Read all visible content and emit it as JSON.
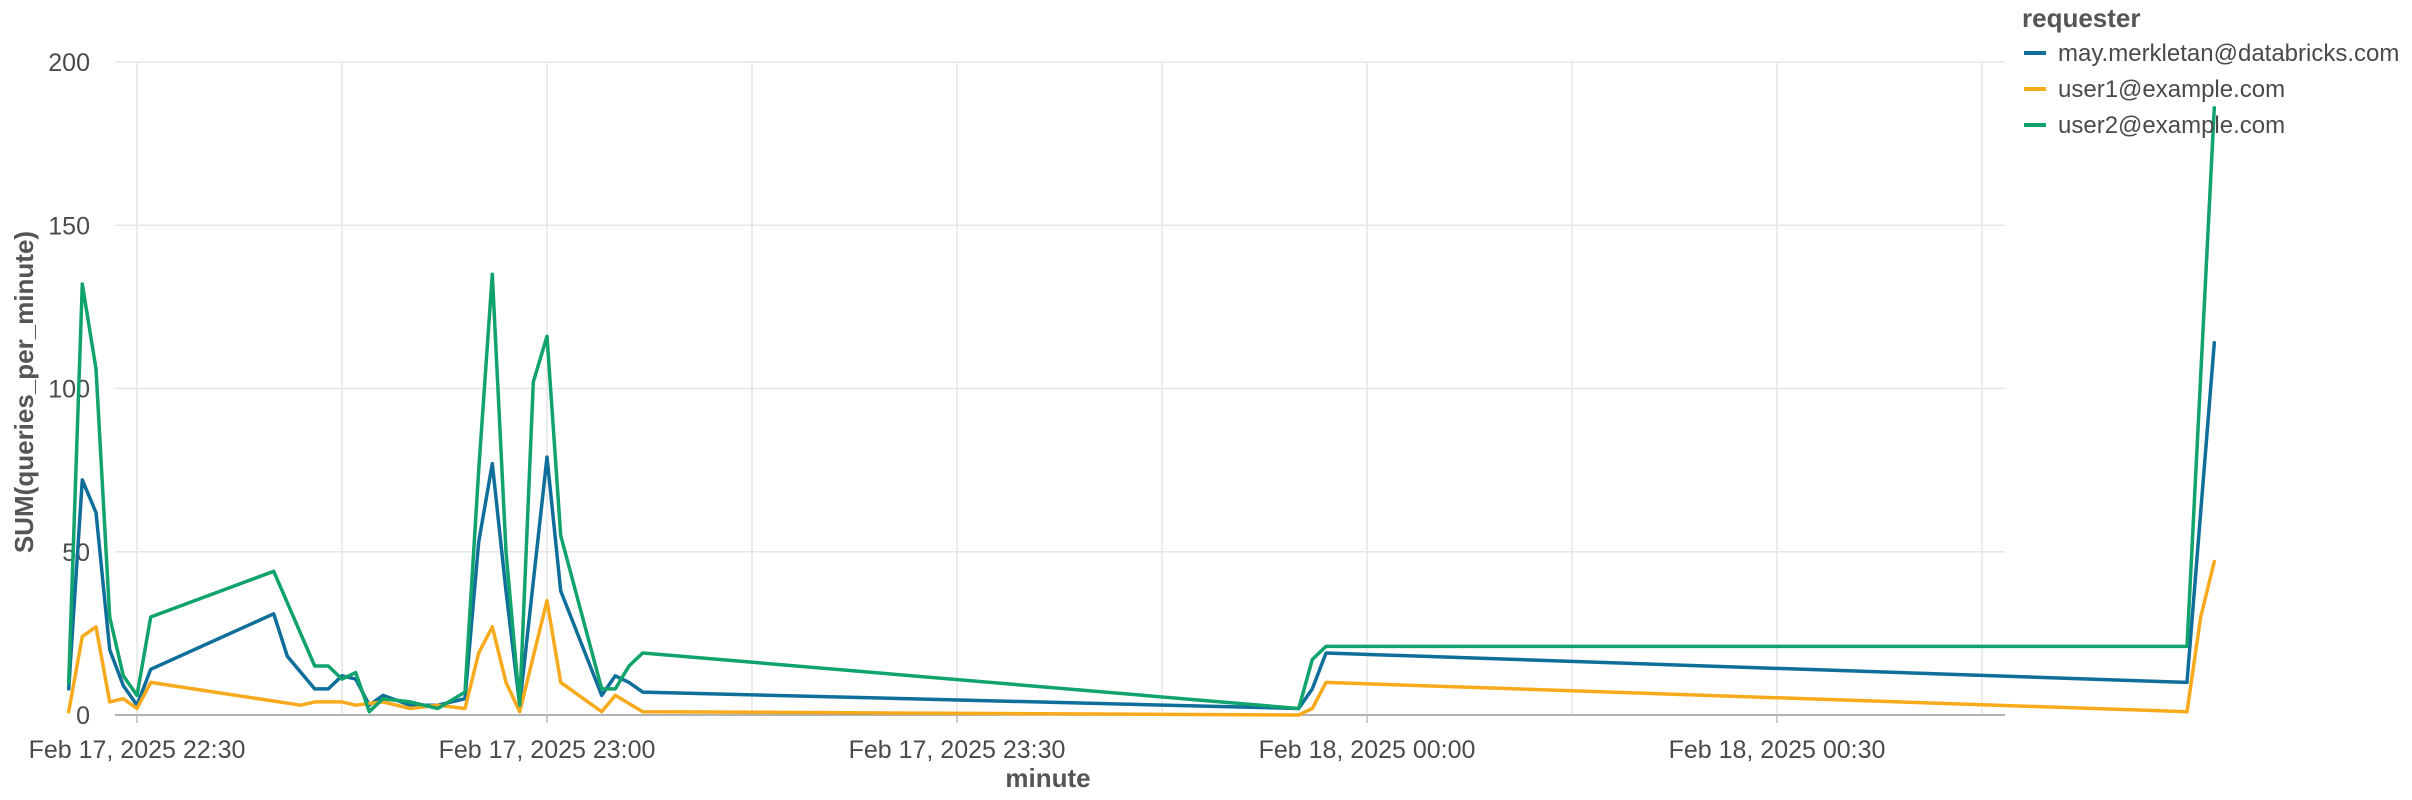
{
  "chart_data": {
    "type": "line",
    "xlabel": "minute",
    "ylabel": "SUM(queries_per_minute)",
    "ylim": [
      0,
      200
    ],
    "y_ticks": [
      0,
      50,
      100,
      150,
      200
    ],
    "x_tick_labels": [
      "Feb 17, 2025 22:30",
      "Feb 17, 2025 23:00",
      "Feb 17, 2025 23:30",
      "Feb 18, 2025 00:00",
      "Feb 18, 2025 00:30"
    ],
    "grid": true,
    "legend": {
      "title": "requester",
      "placement": "top-right"
    },
    "series": [
      {
        "name": "may.merkletan@databricks.com",
        "color": "#0f6f9a",
        "points": [
          [
            -5,
            8
          ],
          [
            -4,
            72
          ],
          [
            -3,
            62
          ],
          [
            -2,
            20
          ],
          [
            -1,
            9
          ],
          [
            0,
            3
          ],
          [
            1,
            14
          ],
          [
            10,
            31
          ],
          [
            11,
            18
          ],
          [
            13,
            8
          ],
          [
            14,
            8
          ],
          [
            15,
            12
          ],
          [
            16,
            11
          ],
          [
            17,
            3
          ],
          [
            18,
            6
          ],
          [
            20,
            3
          ],
          [
            22,
            3
          ],
          [
            24,
            5
          ],
          [
            25,
            53
          ],
          [
            26,
            77
          ],
          [
            27,
            38
          ],
          [
            28,
            3
          ],
          [
            30,
            79
          ],
          [
            31,
            38
          ],
          [
            34,
            6
          ],
          [
            35,
            12
          ],
          [
            36,
            10
          ],
          [
            37,
            7
          ],
          [
            85,
            2
          ],
          [
            86,
            8
          ],
          [
            87,
            19
          ],
          [
            150,
            10
          ],
          [
            152,
            114
          ]
        ]
      },
      {
        "name": "user1@example.com",
        "color": "#f6aa1c",
        "points": [
          [
            -5,
            1
          ],
          [
            -4,
            24
          ],
          [
            -3,
            27
          ],
          [
            -2,
            4
          ],
          [
            -1,
            5
          ],
          [
            0,
            2
          ],
          [
            1,
            10
          ],
          [
            12,
            3
          ],
          [
            13,
            4
          ],
          [
            15,
            4
          ],
          [
            16,
            3
          ],
          [
            18,
            4
          ],
          [
            20,
            2
          ],
          [
            22,
            3
          ],
          [
            24,
            2
          ],
          [
            25,
            19
          ],
          [
            26,
            27
          ],
          [
            27,
            10
          ],
          [
            28,
            1
          ],
          [
            30,
            35
          ],
          [
            31,
            10
          ],
          [
            34,
            1
          ],
          [
            35,
            6
          ],
          [
            37,
            1
          ],
          [
            85,
            0
          ],
          [
            86,
            2
          ],
          [
            87,
            10
          ],
          [
            150,
            1
          ],
          [
            151,
            30
          ],
          [
            152,
            47
          ]
        ]
      },
      {
        "name": "user2@example.com",
        "color": "#10a36b",
        "points": [
          [
            -5,
            10
          ],
          [
            -4,
            132
          ],
          [
            -3,
            106
          ],
          [
            -2,
            30
          ],
          [
            -1,
            12
          ],
          [
            0,
            6
          ],
          [
            1,
            30
          ],
          [
            10,
            44
          ],
          [
            13,
            15
          ],
          [
            14,
            15
          ],
          [
            15,
            11
          ],
          [
            16,
            13
          ],
          [
            17,
            1
          ],
          [
            18,
            5
          ],
          [
            20,
            4
          ],
          [
            22,
            2
          ],
          [
            24,
            7
          ],
          [
            25,
            75
          ],
          [
            26,
            135
          ],
          [
            27,
            50
          ],
          [
            28,
            3
          ],
          [
            29,
            102
          ],
          [
            30,
            116
          ],
          [
            31,
            55
          ],
          [
            34,
            8
          ],
          [
            35,
            8
          ],
          [
            36,
            15
          ],
          [
            37,
            19
          ],
          [
            85,
            2
          ],
          [
            86,
            17
          ],
          [
            87,
            21
          ],
          [
            150,
            21
          ],
          [
            152,
            186
          ]
        ]
      }
    ]
  }
}
